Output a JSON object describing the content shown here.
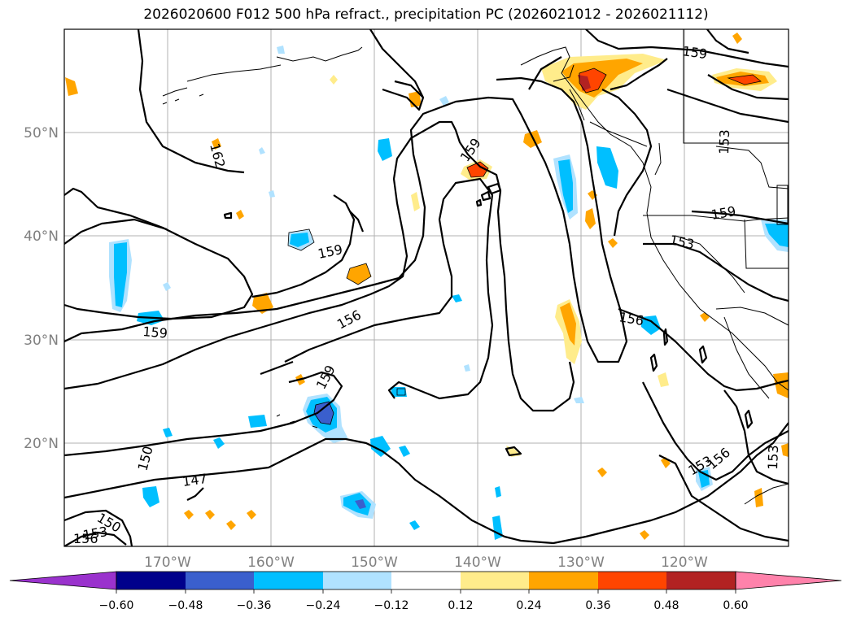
{
  "title": "2026020600 F012 500 hPa refract., precipitation PC (2026021012 - 2026021112)",
  "map": {
    "region": "North Pacific / western North America",
    "lon_range": [
      -180,
      -110
    ],
    "lat_range": [
      10,
      60
    ],
    "lon_ticks": [
      "170°W",
      "160°W",
      "150°W",
      "140°W",
      "130°W",
      "120°W"
    ],
    "lat_ticks": [
      "50°N",
      "40°N",
      "30°N",
      "20°N"
    ],
    "grid": true,
    "contour_field": "500 hPa refractivity",
    "contour_labels": [
      "159",
      "162",
      "159",
      "159",
      "159",
      "156",
      "159",
      "153",
      "159",
      "156",
      "150",
      "147",
      "150",
      "153",
      "156",
      "153",
      "156",
      "153",
      "153"
    ]
  },
  "colorbar": {
    "ticks": [
      "−0.60",
      "−0.48",
      "−0.36",
      "−0.24",
      "−0.12",
      "0.12",
      "0.24",
      "0.36",
      "0.48",
      "0.60"
    ],
    "colors": [
      "#9a32cd",
      "#00008b",
      "#3a5fcd",
      "#00bfff",
      "#b0e2ff",
      "#ffffff",
      "#ffec8b",
      "#ffa500",
      "#ff4500",
      "#b22222",
      "#ff82ab"
    ]
  }
}
